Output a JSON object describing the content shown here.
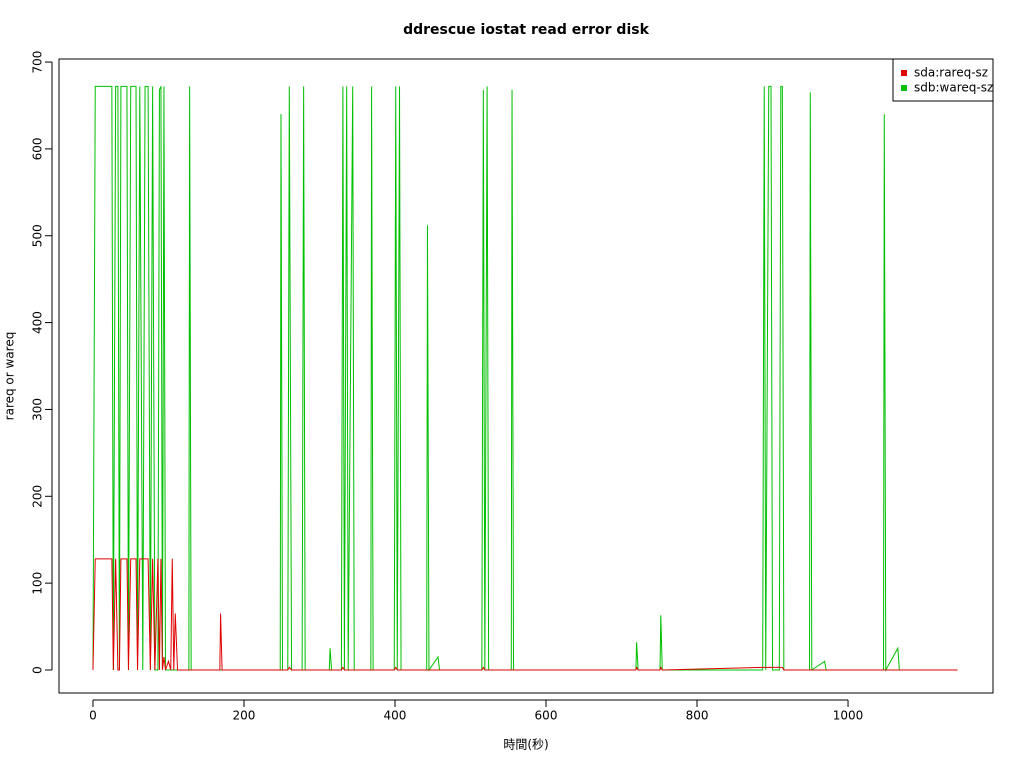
{
  "chart_data": {
    "type": "line",
    "title": "ddrescue iostat read error disk",
    "x_label": "時間(秒)",
    "y_label": "rareq or wareq",
    "x": [
      0,
      3,
      25,
      27,
      30,
      33,
      35,
      37,
      45,
      47,
      50,
      57,
      59,
      62,
      66,
      69,
      73,
      76,
      79,
      82,
      86,
      88,
      90,
      92,
      94,
      96,
      100,
      103,
      105,
      107,
      109,
      112,
      127,
      128,
      130,
      168,
      169,
      171,
      248,
      249,
      251,
      258,
      260,
      263,
      277,
      279,
      281,
      313,
      314,
      316,
      329,
      331,
      333,
      336,
      338,
      344,
      346,
      368,
      369,
      371,
      399,
      401,
      403,
      406,
      408,
      442,
      443,
      445,
      457,
      459,
      515,
      517,
      519,
      522,
      524,
      554,
      555,
      557,
      719,
      720,
      722,
      751,
      752,
      754,
      887,
      889,
      891,
      895,
      898,
      900,
      909,
      911,
      913,
      915,
      949,
      950,
      952,
      969,
      971,
      1047,
      1048,
      1050,
      1066,
      1068,
      1145
    ],
    "series": [
      {
        "name": "sda:rareq-sz",
        "color": "#e00000",
        "values": [
          0,
          128,
          128,
          0,
          128,
          0,
          0,
          128,
          128,
          0,
          128,
          128,
          0,
          128,
          128,
          128,
          128,
          0,
          128,
          0,
          128,
          0,
          128,
          0,
          15,
          0,
          10,
          0,
          128,
          0,
          65,
          0,
          0,
          0,
          0,
          0,
          65,
          0,
          0,
          0,
          0,
          0,
          3,
          0,
          0,
          0,
          0,
          0,
          0,
          0,
          0,
          3,
          0,
          0,
          0,
          0,
          0,
          0,
          0,
          0,
          0,
          3,
          0,
          0,
          0,
          0,
          0,
          0,
          0,
          0,
          0,
          3,
          0,
          0,
          0,
          0,
          0,
          0,
          0,
          3,
          0,
          0,
          3,
          0,
          3,
          3,
          3,
          3,
          3,
          3,
          3,
          3,
          3,
          0,
          0,
          0,
          0,
          0,
          0,
          0,
          0,
          0,
          0,
          0,
          0
        ]
      },
      {
        "name": "sdb:wareq-sz",
        "color": "#00c000",
        "values": [
          0,
          672,
          672,
          0,
          672,
          672,
          0,
          672,
          672,
          0,
          672,
          672,
          0,
          672,
          0,
          672,
          672,
          0,
          672,
          0,
          0,
          668,
          672,
          0,
          672,
          0,
          0,
          0,
          0,
          0,
          0,
          0,
          0,
          672,
          0,
          0,
          0,
          0,
          0,
          640,
          0,
          0,
          672,
          0,
          0,
          672,
          0,
          0,
          25,
          0,
          0,
          672,
          0,
          672,
          0,
          672,
          0,
          0,
          672,
          0,
          0,
          672,
          0,
          672,
          0,
          0,
          512,
          0,
          15,
          0,
          0,
          668,
          0,
          672,
          0,
          0,
          668,
          0,
          0,
          32,
          0,
          0,
          63,
          0,
          0,
          672,
          0,
          672,
          672,
          0,
          0,
          672,
          672,
          0,
          0,
          665,
          0,
          10,
          0,
          0,
          640,
          0,
          25,
          0,
          0
        ]
      }
    ],
    "xlim": [
      -45,
      1192
    ],
    "ylim": [
      -26.5,
      703.5
    ],
    "xticks": [
      0,
      200,
      400,
      600,
      800,
      1000
    ],
    "yticks": [
      0,
      100,
      200,
      300,
      400,
      500,
      600,
      700
    ],
    "legend": "top-right"
  }
}
